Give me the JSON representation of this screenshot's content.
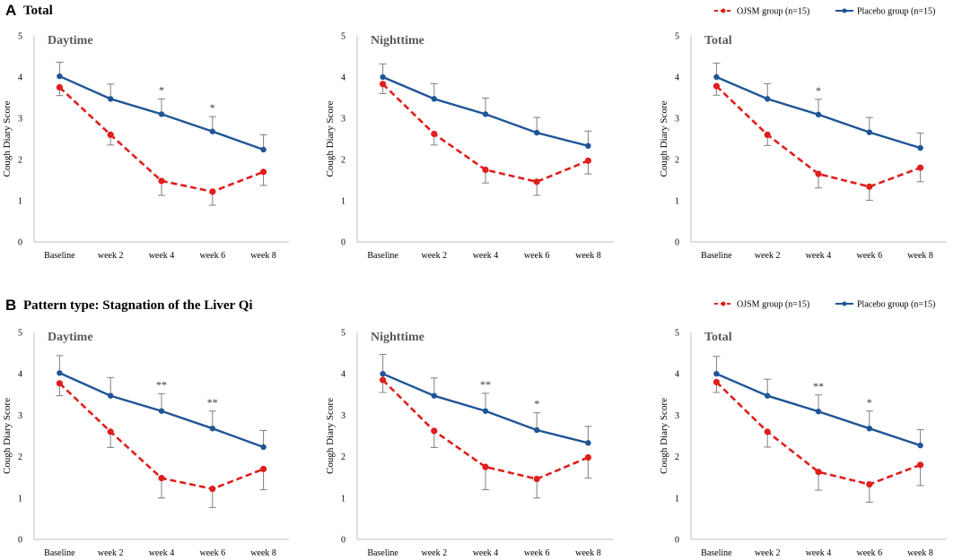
{
  "figure": {
    "panels": [
      {
        "letter": "A",
        "title": "Total"
      },
      {
        "letter": "B",
        "title": "Pattern type: Stagnation of the Liver Qi"
      }
    ],
    "legend": [
      {
        "label": "OJSM group (n=15)",
        "color": "#e01e1e",
        "style": "dashed"
      },
      {
        "label": "Placebo  group (n=15)",
        "color": "#1f5596",
        "style": "solid"
      }
    ]
  },
  "chart_data": [
    {
      "type": "line",
      "panel": "A",
      "title": "Daytime",
      "xlabel": "",
      "ylabel": "Cough Diary Score",
      "ylim": [
        0,
        5
      ],
      "categories": [
        "Baseline",
        "week 2",
        "week 4",
        "week 6",
        "week 8"
      ],
      "series": [
        {
          "name": "OJSM group (n=15)",
          "values": [
            3.75,
            2.6,
            1.48,
            1.22,
            1.7
          ],
          "errors": [
            0.2,
            0.25,
            0.35,
            0.33,
            0.33
          ]
        },
        {
          "name": "Placebo  group (n=15)",
          "values": [
            4.02,
            3.47,
            3.1,
            2.68,
            2.24
          ],
          "errors": [
            0.34,
            0.36,
            0.37,
            0.36,
            0.36
          ]
        }
      ],
      "annotations": [
        "",
        "",
        "*",
        "*",
        ""
      ]
    },
    {
      "type": "line",
      "panel": "A",
      "title": "Nighttime",
      "xlabel": "",
      "ylabel": "Cough Diary Score",
      "ylim": [
        0,
        5
      ],
      "categories": [
        "Baseline",
        "week 2",
        "week 4",
        "week 6",
        "week 8"
      ],
      "series": [
        {
          "name": "OJSM group (n=15)",
          "values": [
            3.83,
            2.62,
            1.75,
            1.46,
            1.97
          ],
          "errors": [
            0.23,
            0.27,
            0.32,
            0.33,
            0.32
          ]
        },
        {
          "name": "Placebo  group (n=15)",
          "values": [
            4.0,
            3.47,
            3.1,
            2.65,
            2.33
          ],
          "errors": [
            0.32,
            0.37,
            0.39,
            0.37,
            0.36
          ]
        }
      ],
      "annotations": [
        "",
        "",
        "",
        "",
        ""
      ]
    },
    {
      "type": "line",
      "panel": "A",
      "title": "Total",
      "xlabel": "",
      "ylabel": "Cough Diary Score",
      "ylim": [
        0,
        5
      ],
      "categories": [
        "Baseline",
        "week 2",
        "week 4",
        "week 6",
        "week 8"
      ],
      "series": [
        {
          "name": "OJSM group (n=15)",
          "values": [
            3.78,
            2.6,
            1.65,
            1.34,
            1.8
          ],
          "errors": [
            0.22,
            0.26,
            0.34,
            0.33,
            0.34
          ]
        },
        {
          "name": "Placebo  group (n=15)",
          "values": [
            4.0,
            3.47,
            3.09,
            2.66,
            2.28
          ],
          "errors": [
            0.34,
            0.37,
            0.37,
            0.36,
            0.36
          ]
        }
      ],
      "annotations": [
        "",
        "",
        "*",
        "",
        ""
      ]
    },
    {
      "type": "line",
      "panel": "B",
      "title": "Daytime",
      "xlabel": "",
      "ylabel": "Cough Diary Score",
      "ylim": [
        0,
        5
      ],
      "categories": [
        "Baseline",
        "week 2",
        "week 4",
        "week 6",
        "week 8"
      ],
      "series": [
        {
          "name": "OJSM group (n=15)",
          "values": [
            3.77,
            2.6,
            1.48,
            1.22,
            1.7
          ],
          "errors": [
            0.3,
            0.38,
            0.48,
            0.45,
            0.5
          ]
        },
        {
          "name": "Placebo  group (n=15)",
          "values": [
            4.02,
            3.47,
            3.1,
            2.68,
            2.23
          ],
          "errors": [
            0.42,
            0.44,
            0.42,
            0.42,
            0.4
          ]
        }
      ],
      "annotations": [
        "",
        "",
        "**",
        "**",
        ""
      ]
    },
    {
      "type": "line",
      "panel": "B",
      "title": "Nighttime",
      "xlabel": "",
      "ylabel": "Cough Diary Score",
      "ylim": [
        0,
        5
      ],
      "categories": [
        "Baseline",
        "week 2",
        "week 4",
        "week 6",
        "week 8"
      ],
      "series": [
        {
          "name": "OJSM group (n=15)",
          "values": [
            3.85,
            2.62,
            1.75,
            1.46,
            1.98
          ],
          "errors": [
            0.3,
            0.4,
            0.55,
            0.46,
            0.5
          ]
        },
        {
          "name": "Placebo  group (n=15)",
          "values": [
            4.0,
            3.47,
            3.1,
            2.64,
            2.33
          ],
          "errors": [
            0.47,
            0.43,
            0.43,
            0.42,
            0.4
          ]
        }
      ],
      "annotations": [
        "",
        "",
        "**",
        "*",
        ""
      ]
    },
    {
      "type": "line",
      "panel": "B",
      "title": "Total",
      "xlabel": "",
      "ylabel": "Cough Diary Score",
      "ylim": [
        0,
        5
      ],
      "categories": [
        "Baseline",
        "week 2",
        "week 4",
        "week 6",
        "week 8"
      ],
      "series": [
        {
          "name": "OJSM group (n=15)",
          "values": [
            3.8,
            2.6,
            1.63,
            1.33,
            1.8
          ],
          "errors": [
            0.25,
            0.37,
            0.44,
            0.43,
            0.5
          ]
        },
        {
          "name": "Placebo  group (n=15)",
          "values": [
            4.0,
            3.47,
            3.09,
            2.68,
            2.27
          ],
          "errors": [
            0.42,
            0.4,
            0.4,
            0.42,
            0.38
          ]
        }
      ],
      "annotations": [
        "",
        "",
        "**",
        "*",
        ""
      ]
    }
  ]
}
